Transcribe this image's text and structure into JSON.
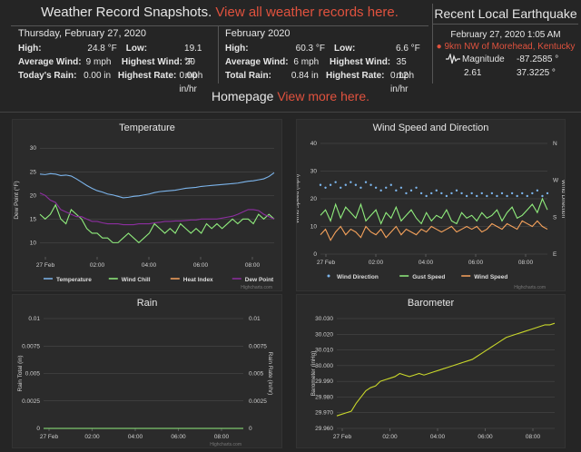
{
  "snapshots": {
    "title": "Weather Record Snapshots.",
    "link": "View all weather records here.",
    "day": {
      "heading": "Thursday, February 27, 2020",
      "high_label": "High:",
      "high": "24.8 °F",
      "low_label": "Low:",
      "low": "19.1 °F",
      "avg_wind_label": "Average Wind:",
      "avg_wind": "9 mph",
      "highest_wind_label": "Highest Wind:",
      "highest_wind": "20 mph",
      "rain_label": "Today's Rain:",
      "rain": "0.00 in",
      "highest_rate_label": "Highest Rate:",
      "highest_rate": "0.00 in/hr"
    },
    "month": {
      "heading": "February 2020",
      "high_label": "High:",
      "high": "60.3 °F",
      "low_label": "Low:",
      "low": "6.6 °F",
      "avg_wind_label": "Average Wind:",
      "avg_wind": "6 mph",
      "highest_wind_label": "Highest Wind:",
      "highest_wind": "35 mph",
      "rain_label": "Total Rain:",
      "rain": "0.84 in",
      "highest_rate_label": "Highest Rate:",
      "highest_rate": "0.12 in/hr"
    }
  },
  "earthquake": {
    "title": "Recent Local Earthquake",
    "datetime": "February 27, 2020 1:05 AM",
    "location": "9km NW of Morehead, Kentucky",
    "magnitude_label": "Magnitude",
    "magnitude": "2.61",
    "longitude": "-87.2585 °",
    "latitude": "37.3225 °"
  },
  "homepage": {
    "text": "Homepage",
    "link": "View more here."
  },
  "colors": {
    "temperature": "#7cb5ec",
    "wind_chill": "#90ed7d",
    "heat_index": "#f7a35c",
    "dew_point": "#8d2ea0",
    "wind_direction": "#7cb5ec",
    "gust_speed": "#90ed7d",
    "wind_speed": "#f7a35c",
    "barometer": "#c8d62b",
    "accent": "#e0523e"
  },
  "credits": "Highcharts.com",
  "chart_data": [
    {
      "type": "line",
      "title": "Temperature",
      "ylabel": "Dew Point (°F)",
      "x_ticks": [
        "27 Feb",
        "02:00",
        "04:00",
        "06:00",
        "08:00"
      ],
      "y_ticks": [
        "10",
        "15",
        "20",
        "25",
        "30"
      ],
      "ylim": [
        7,
        31
      ],
      "legend": "bottom",
      "series": [
        {
          "name": "Temperature",
          "values": [
            24.5,
            24.4,
            24.6,
            24.5,
            24.2,
            24.3,
            24.1,
            23.5,
            22.8,
            22.1,
            21.5,
            21,
            20.7,
            20.3,
            20.1,
            19.8,
            19.5,
            19.6,
            19.8,
            19.9,
            20.1,
            20.3,
            20.6,
            20.8,
            20.9,
            21,
            21.1,
            21.3,
            21.5,
            21.6,
            21.7,
            21.9,
            22,
            22.1,
            22.2,
            22.3,
            22.4,
            22.5,
            22.6,
            22.8,
            23,
            23.1,
            23.3,
            23.5,
            24,
            24.8
          ]
        },
        {
          "name": "Wind Chill",
          "values": [
            16,
            15,
            16,
            18,
            15,
            14,
            17,
            16,
            15,
            13,
            12,
            12,
            11,
            11,
            10,
            10,
            11,
            12,
            11,
            10,
            11,
            12,
            14,
            13,
            12,
            13,
            12,
            14,
            13,
            12,
            13,
            12,
            14,
            13,
            14,
            13,
            14,
            15,
            14,
            15,
            15,
            14,
            16,
            15,
            16,
            15
          ]
        },
        {
          "name": "Heat Index",
          "values": []
        },
        {
          "name": "Dew Point",
          "values": [
            20.5,
            20,
            19,
            18.5,
            17,
            16.5,
            16,
            15.5,
            15.5,
            15,
            14.5,
            14.5,
            14.2,
            14,
            14,
            14,
            13.8,
            13.8,
            13.8,
            14,
            14,
            14,
            14.2,
            14.3,
            14.5,
            14.5,
            14.6,
            14.6,
            14.7,
            14.8,
            14.8,
            15,
            15,
            15,
            15,
            15.2,
            15.4,
            15.6,
            16,
            16.5,
            17,
            17,
            16.8,
            16,
            15.5,
            15
          ]
        }
      ]
    },
    {
      "type": "line",
      "title": "Wind Speed and Direction",
      "ylabel": "Wind Speed (mph)",
      "ylabel2": "Wind Direction",
      "x_ticks": [
        "27 Feb",
        "02:00",
        "04:00",
        "06:00",
        "08:00"
      ],
      "y_ticks": [
        "0",
        "10",
        "20",
        "30",
        "40"
      ],
      "y2_ticks": [
        "E",
        "S",
        "W",
        "N"
      ],
      "ylim": [
        0,
        40
      ],
      "legend": "bottom",
      "series": [
        {
          "name": "Wind Direction",
          "values": [
            25,
            24,
            25,
            26,
            24,
            25,
            26,
            25,
            24,
            26,
            25,
            24,
            23,
            24,
            25,
            23,
            24,
            22,
            23,
            24,
            22,
            21,
            22,
            23,
            22,
            21,
            22,
            23,
            22,
            21,
            22,
            21,
            22,
            21,
            22,
            21,
            22,
            21,
            22,
            21,
            22,
            21,
            22,
            23,
            21,
            22
          ]
        },
        {
          "name": "Gust Speed",
          "values": [
            14,
            16,
            12,
            18,
            13,
            17,
            15,
            13,
            18,
            12,
            14,
            16,
            11,
            15,
            13,
            17,
            12,
            14,
            16,
            13,
            11,
            15,
            12,
            14,
            13,
            16,
            12,
            11,
            15,
            13,
            14,
            12,
            15,
            13,
            14,
            16,
            12,
            15,
            17,
            13,
            14,
            16,
            18,
            15,
            20,
            16
          ]
        },
        {
          "name": "Wind Speed",
          "values": [
            7,
            9,
            5,
            8,
            10,
            7,
            9,
            8,
            6,
            10,
            8,
            7,
            9,
            6,
            8,
            10,
            7,
            9,
            8,
            7,
            9,
            8,
            10,
            9,
            8,
            9,
            10,
            8,
            9,
            10,
            9,
            10,
            8,
            9,
            11,
            10,
            9,
            11,
            10,
            9,
            12,
            11,
            10,
            12,
            10,
            9
          ]
        }
      ]
    },
    {
      "type": "line",
      "title": "Rain",
      "ylabel": "Rain Total (in)",
      "ylabel2": "Rain Rate (in/hr)",
      "x_ticks": [
        "27 Feb",
        "02:00",
        "04:00",
        "06:00",
        "08:00"
      ],
      "y_ticks": [
        "0",
        "0.0025",
        "0.005",
        "0.0075",
        "0.01"
      ],
      "ylim": [
        0,
        0.01
      ],
      "series": [
        {
          "name": "Rain Total",
          "values": [
            0,
            0
          ]
        }
      ]
    },
    {
      "type": "line",
      "title": "Barometer",
      "ylabel": "Barometer (inHg)",
      "x_ticks": [
        "27 Feb",
        "02:00",
        "04:00",
        "06:00",
        "08:00"
      ],
      "y_ticks": [
        "29.960",
        "29.970",
        "29.980",
        "29.990",
        "30.000",
        "30.010",
        "30.020",
        "30.030"
      ],
      "ylim": [
        29.96,
        30.03
      ],
      "series": [
        {
          "name": "Barometer",
          "values": [
            29.968,
            29.969,
            29.97,
            29.971,
            29.976,
            29.98,
            29.984,
            29.986,
            29.987,
            29.99,
            29.991,
            29.992,
            29.993,
            29.995,
            29.994,
            29.993,
            29.994,
            29.995,
            29.994,
            29.995,
            29.996,
            29.997,
            29.998,
            29.999,
            30.0,
            30.001,
            30.002,
            30.003,
            30.004,
            30.006,
            30.008,
            30.01,
            30.012,
            30.014,
            30.016,
            30.018,
            30.019,
            30.02,
            30.021,
            30.022,
            30.023,
            30.024,
            30.025,
            30.026,
            30.026,
            30.027
          ]
        }
      ]
    }
  ]
}
